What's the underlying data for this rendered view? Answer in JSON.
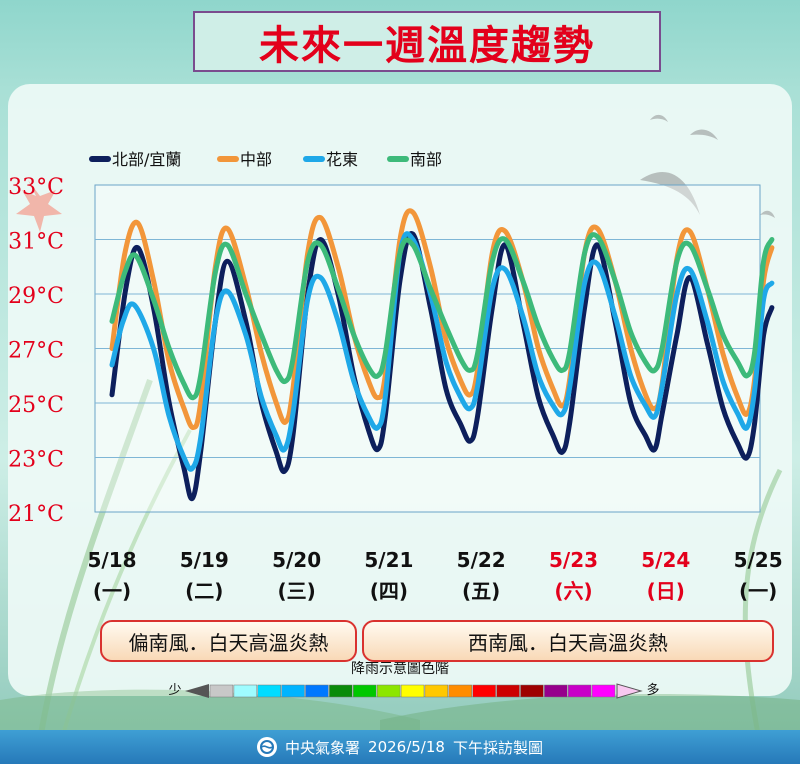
{
  "title": "未來一週溫度趨勢",
  "chart_data": {
    "type": "line",
    "ylim": [
      21,
      33
    ],
    "yticks": [
      "33°C",
      "31°C",
      "29°C",
      "27°C",
      "25°C",
      "23°C",
      "21°C"
    ],
    "x_labels": [
      {
        "date": "5/18",
        "day": "(一)",
        "color": "#111111"
      },
      {
        "date": "5/19",
        "day": "(二)",
        "color": "#111111"
      },
      {
        "date": "5/20",
        "day": "(三)",
        "color": "#111111"
      },
      {
        "date": "5/21",
        "day": "(四)",
        "color": "#111111"
      },
      {
        "date": "5/22",
        "day": "(五)",
        "color": "#111111"
      },
      {
        "date": "5/23",
        "day": "(六)",
        "color": "#e3001b"
      },
      {
        "date": "5/24",
        "day": "(日)",
        "color": "#e3001b"
      },
      {
        "date": "5/25",
        "day": "(一)",
        "color": "#111111"
      }
    ],
    "legend_position": "top-left",
    "series": [
      {
        "name": "北部/宜蘭",
        "color": "#0d1f5c",
        "points": [
          [
            0.0,
            25.3
          ],
          [
            0.15,
            29.2
          ],
          [
            0.28,
            30.7
          ],
          [
            0.45,
            28.5
          ],
          [
            0.62,
            25.0
          ],
          [
            0.78,
            22.6
          ],
          [
            0.87,
            21.5
          ],
          [
            0.96,
            23.2
          ],
          [
            1.12,
            28.0
          ],
          [
            1.25,
            30.2
          ],
          [
            1.45,
            28.0
          ],
          [
            1.62,
            25.0
          ],
          [
            1.78,
            23.2
          ],
          [
            1.87,
            22.5
          ],
          [
            1.96,
            23.8
          ],
          [
            2.12,
            29.0
          ],
          [
            2.26,
            31.0
          ],
          [
            2.45,
            29.0
          ],
          [
            2.62,
            26.0
          ],
          [
            2.78,
            24.0
          ],
          [
            2.88,
            23.3
          ],
          [
            2.96,
            24.5
          ],
          [
            3.12,
            29.5
          ],
          [
            3.26,
            31.2
          ],
          [
            3.45,
            28.5
          ],
          [
            3.62,
            25.5
          ],
          [
            3.78,
            24.2
          ],
          [
            3.88,
            23.6
          ],
          [
            3.96,
            24.5
          ],
          [
            4.12,
            28.5
          ],
          [
            4.26,
            30.8
          ],
          [
            4.45,
            28.0
          ],
          [
            4.62,
            25.2
          ],
          [
            4.78,
            23.8
          ],
          [
            4.88,
            23.2
          ],
          [
            4.96,
            24.3
          ],
          [
            5.12,
            28.5
          ],
          [
            5.26,
            30.8
          ],
          [
            5.45,
            28.0
          ],
          [
            5.62,
            25.0
          ],
          [
            5.78,
            23.8
          ],
          [
            5.88,
            23.3
          ],
          [
            5.96,
            24.6
          ],
          [
            6.12,
            27.5
          ],
          [
            6.26,
            29.6
          ],
          [
            6.45,
            27.2
          ],
          [
            6.62,
            24.8
          ],
          [
            6.78,
            23.5
          ],
          [
            6.88,
            23.0
          ],
          [
            6.96,
            24.2
          ],
          [
            7.06,
            27.5
          ],
          [
            7.15,
            28.5
          ]
        ]
      },
      {
        "name": "中部",
        "color": "#f2963a",
        "points": [
          [
            0.0,
            27.0
          ],
          [
            0.14,
            30.5
          ],
          [
            0.28,
            31.6
          ],
          [
            0.45,
            29.5
          ],
          [
            0.62,
            26.5
          ],
          [
            0.78,
            24.8
          ],
          [
            0.88,
            24.1
          ],
          [
            0.96,
            25.0
          ],
          [
            1.12,
            30.0
          ],
          [
            1.25,
            31.4
          ],
          [
            1.45,
            29.3
          ],
          [
            1.62,
            26.8
          ],
          [
            1.78,
            25.0
          ],
          [
            1.88,
            24.3
          ],
          [
            1.96,
            25.5
          ],
          [
            2.12,
            30.5
          ],
          [
            2.26,
            31.8
          ],
          [
            2.45,
            30.0
          ],
          [
            2.62,
            27.5
          ],
          [
            2.78,
            25.8
          ],
          [
            2.88,
            25.2
          ],
          [
            2.96,
            26.0
          ],
          [
            3.12,
            31.0
          ],
          [
            3.26,
            32.0
          ],
          [
            3.45,
            30.0
          ],
          [
            3.62,
            27.3
          ],
          [
            3.78,
            25.8
          ],
          [
            3.88,
            25.3
          ],
          [
            3.96,
            26.2
          ],
          [
            4.12,
            30.5
          ],
          [
            4.26,
            31.3
          ],
          [
            4.45,
            29.5
          ],
          [
            4.62,
            27.0
          ],
          [
            4.78,
            25.5
          ],
          [
            4.88,
            24.9
          ],
          [
            4.96,
            25.9
          ],
          [
            5.12,
            30.5
          ],
          [
            5.26,
            31.4
          ],
          [
            5.45,
            29.5
          ],
          [
            5.62,
            27.0
          ],
          [
            5.78,
            25.3
          ],
          [
            5.88,
            24.8
          ],
          [
            5.96,
            25.7
          ],
          [
            6.12,
            30.3
          ],
          [
            6.26,
            31.3
          ],
          [
            6.45,
            29.2
          ],
          [
            6.62,
            26.8
          ],
          [
            6.78,
            25.2
          ],
          [
            6.88,
            24.6
          ],
          [
            6.96,
            25.8
          ],
          [
            7.06,
            29.5
          ],
          [
            7.15,
            30.7
          ]
        ]
      },
      {
        "name": "花東",
        "color": "#1fa8e8",
        "points": [
          [
            0.0,
            26.4
          ],
          [
            0.12,
            28.0
          ],
          [
            0.24,
            28.6
          ],
          [
            0.45,
            27.0
          ],
          [
            0.62,
            24.5
          ],
          [
            0.78,
            23.0
          ],
          [
            0.87,
            22.6
          ],
          [
            0.96,
            23.7
          ],
          [
            1.12,
            28.0
          ],
          [
            1.25,
            29.1
          ],
          [
            1.45,
            27.5
          ],
          [
            1.62,
            25.2
          ],
          [
            1.78,
            23.8
          ],
          [
            1.87,
            23.3
          ],
          [
            1.96,
            24.6
          ],
          [
            2.12,
            28.8
          ],
          [
            2.26,
            29.6
          ],
          [
            2.45,
            28.0
          ],
          [
            2.62,
            25.8
          ],
          [
            2.78,
            24.5
          ],
          [
            2.88,
            24.1
          ],
          [
            2.96,
            25.2
          ],
          [
            3.12,
            30.5
          ],
          [
            3.26,
            31.0
          ],
          [
            3.45,
            29.0
          ],
          [
            3.62,
            26.5
          ],
          [
            3.78,
            25.2
          ],
          [
            3.88,
            24.8
          ],
          [
            3.96,
            25.6
          ],
          [
            4.12,
            29.2
          ],
          [
            4.26,
            29.9
          ],
          [
            4.45,
            28.2
          ],
          [
            4.62,
            26.0
          ],
          [
            4.78,
            24.9
          ],
          [
            4.88,
            24.6
          ],
          [
            4.96,
            25.6
          ],
          [
            5.12,
            29.4
          ],
          [
            5.26,
            30.1
          ],
          [
            5.45,
            28.2
          ],
          [
            5.62,
            26.0
          ],
          [
            5.78,
            24.9
          ],
          [
            5.88,
            24.5
          ],
          [
            5.96,
            25.6
          ],
          [
            6.12,
            29.0
          ],
          [
            6.26,
            29.9
          ],
          [
            6.45,
            28.0
          ],
          [
            6.62,
            25.8
          ],
          [
            6.78,
            24.6
          ],
          [
            6.88,
            24.1
          ],
          [
            6.96,
            25.4
          ],
          [
            7.06,
            28.8
          ],
          [
            7.15,
            29.4
          ]
        ]
      },
      {
        "name": "南部",
        "color": "#3dba7a",
        "points": [
          [
            0.0,
            28.0
          ],
          [
            0.14,
            29.8
          ],
          [
            0.26,
            30.4
          ],
          [
            0.45,
            28.8
          ],
          [
            0.62,
            27.0
          ],
          [
            0.78,
            25.7
          ],
          [
            0.88,
            25.2
          ],
          [
            0.96,
            26.0
          ],
          [
            1.12,
            29.8
          ],
          [
            1.25,
            30.8
          ],
          [
            1.45,
            29.0
          ],
          [
            1.62,
            27.5
          ],
          [
            1.78,
            26.2
          ],
          [
            1.88,
            25.8
          ],
          [
            1.96,
            26.6
          ],
          [
            2.12,
            30.2
          ],
          [
            2.26,
            30.8
          ],
          [
            2.45,
            29.2
          ],
          [
            2.62,
            27.5
          ],
          [
            2.78,
            26.3
          ],
          [
            2.88,
            26.0
          ],
          [
            2.96,
            26.8
          ],
          [
            3.12,
            30.5
          ],
          [
            3.26,
            30.8
          ],
          [
            3.45,
            29.2
          ],
          [
            3.62,
            27.8
          ],
          [
            3.78,
            26.6
          ],
          [
            3.88,
            26.2
          ],
          [
            3.96,
            26.8
          ],
          [
            4.12,
            30.2
          ],
          [
            4.26,
            31.0
          ],
          [
            4.45,
            29.5
          ],
          [
            4.62,
            27.8
          ],
          [
            4.78,
            26.6
          ],
          [
            4.88,
            26.2
          ],
          [
            4.96,
            26.9
          ],
          [
            5.12,
            30.5
          ],
          [
            5.26,
            31.1
          ],
          [
            5.45,
            29.5
          ],
          [
            5.62,
            27.6
          ],
          [
            5.78,
            26.5
          ],
          [
            5.88,
            26.2
          ],
          [
            5.96,
            27.0
          ],
          [
            6.12,
            30.2
          ],
          [
            6.26,
            30.8
          ],
          [
            6.45,
            29.2
          ],
          [
            6.62,
            27.5
          ],
          [
            6.78,
            26.5
          ],
          [
            6.88,
            26.0
          ],
          [
            6.96,
            26.8
          ],
          [
            7.06,
            30.2
          ],
          [
            7.15,
            31.0
          ]
        ]
      }
    ]
  },
  "segments": [
    {
      "text": "偏南風．白天高溫炎熱"
    },
    {
      "text": "西南風．白天高溫炎熱"
    }
  ],
  "rain_scale": {
    "title": "降雨示意圖色階",
    "less": "少",
    "more": "多",
    "colors": [
      "#c8c8c8",
      "#9ffcff",
      "#00dcff",
      "#00b4ff",
      "#0078ff",
      "#0a8b0a",
      "#00c800",
      "#8ce600",
      "#ffff00",
      "#ffc800",
      "#ff8c00",
      "#ff0000",
      "#cc0000",
      "#9e0000",
      "#96008c",
      "#c800c8",
      "#ff00ff"
    ]
  },
  "footer": {
    "agency": "中央氣象署",
    "date": "2026/5/18",
    "note": "下午採訪製圖"
  }
}
